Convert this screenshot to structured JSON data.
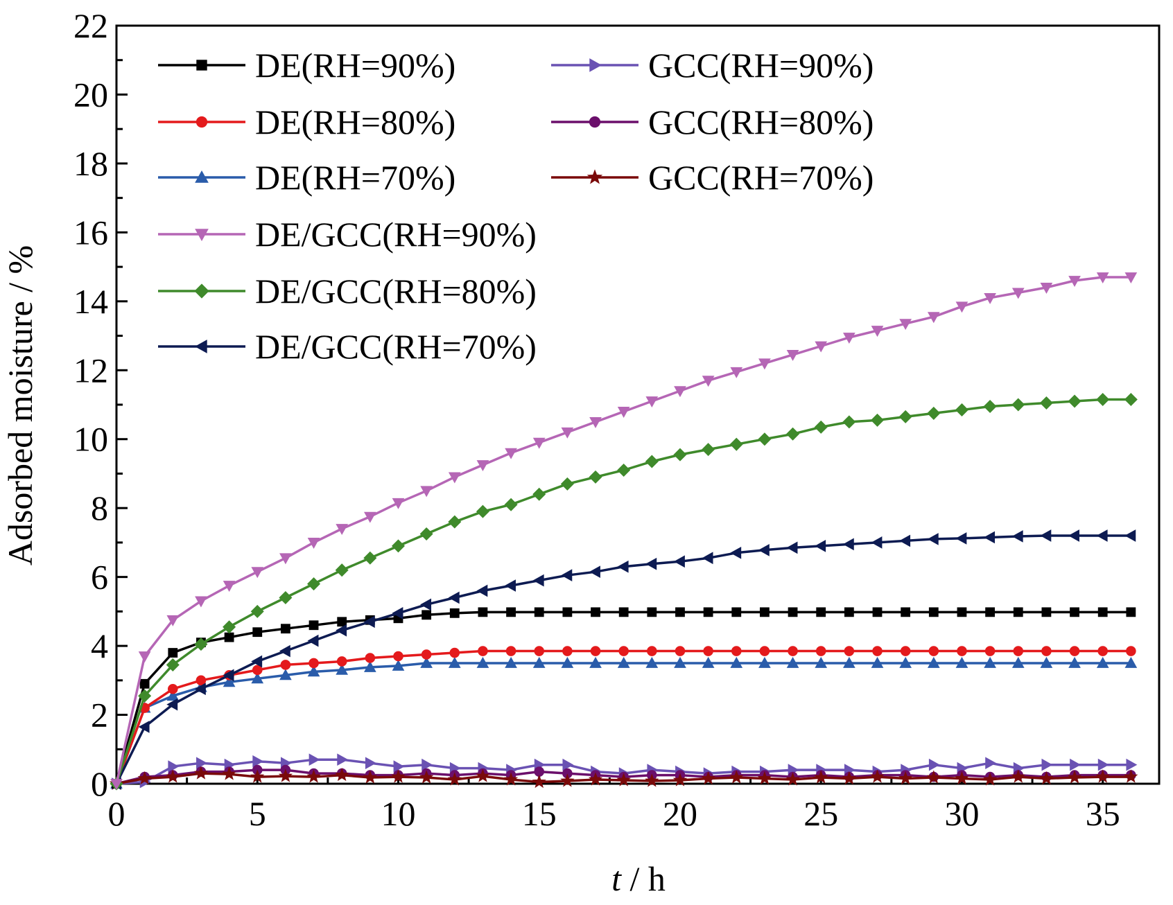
{
  "chart_data": {
    "type": "line",
    "title": "",
    "xlabel": {
      "var": "t",
      "unit": " / h"
    },
    "ylabel": "Adsorbed moisture / %",
    "xlim": [
      0,
      37
    ],
    "ylim": [
      0,
      22
    ],
    "xticks": [
      0,
      5,
      10,
      15,
      20,
      25,
      30,
      35
    ],
    "yticks": [
      0,
      2,
      4,
      6,
      8,
      10,
      12,
      14,
      16,
      18,
      20,
      22
    ],
    "grid": false,
    "legend_position": "top-left",
    "x": [
      0,
      1,
      2,
      3,
      4,
      5,
      6,
      7,
      8,
      9,
      10,
      11,
      12,
      13,
      14,
      15,
      16,
      17,
      18,
      19,
      20,
      21,
      22,
      23,
      24,
      25,
      26,
      27,
      28,
      29,
      30,
      31,
      32,
      33,
      34,
      35,
      36
    ],
    "series": [
      {
        "name": "DE(RH=90%)",
        "color": "#000000",
        "marker": "square",
        "values": [
          0,
          2.9,
          3.8,
          4.1,
          4.25,
          4.4,
          4.5,
          4.6,
          4.7,
          4.75,
          4.8,
          4.9,
          4.95,
          4.98,
          4.98,
          4.98,
          4.98,
          4.98,
          4.98,
          4.98,
          4.98,
          4.98,
          4.98,
          4.98,
          4.98,
          4.98,
          4.98,
          4.98,
          4.98,
          4.98,
          4.98,
          4.98,
          4.98,
          4.98,
          4.98,
          4.98,
          4.98
        ]
      },
      {
        "name": "DE(RH=80%)",
        "color": "#e41a1c",
        "marker": "circle",
        "values": [
          0,
          2.2,
          2.75,
          3.0,
          3.15,
          3.3,
          3.45,
          3.5,
          3.55,
          3.65,
          3.7,
          3.75,
          3.8,
          3.85,
          3.85,
          3.85,
          3.85,
          3.85,
          3.85,
          3.85,
          3.85,
          3.85,
          3.85,
          3.85,
          3.85,
          3.85,
          3.85,
          3.85,
          3.85,
          3.85,
          3.85,
          3.85,
          3.85,
          3.85,
          3.85,
          3.85,
          3.85
        ]
      },
      {
        "name": "DE(RH=70%)",
        "color": "#2a5caa",
        "marker": "triangle-up",
        "values": [
          0,
          2.2,
          2.55,
          2.8,
          2.95,
          3.05,
          3.15,
          3.25,
          3.3,
          3.38,
          3.42,
          3.5,
          3.5,
          3.5,
          3.5,
          3.5,
          3.5,
          3.5,
          3.5,
          3.5,
          3.5,
          3.5,
          3.5,
          3.5,
          3.5,
          3.5,
          3.5,
          3.5,
          3.5,
          3.5,
          3.5,
          3.5,
          3.5,
          3.5,
          3.5,
          3.5,
          3.5
        ]
      },
      {
        "name": "GCC(RH=90%)",
        "color": "#6a52b3",
        "marker": "triangle-right",
        "values": [
          0,
          0.05,
          0.5,
          0.6,
          0.55,
          0.65,
          0.6,
          0.7,
          0.7,
          0.6,
          0.5,
          0.55,
          0.45,
          0.45,
          0.4,
          0.55,
          0.55,
          0.35,
          0.3,
          0.4,
          0.35,
          0.3,
          0.35,
          0.35,
          0.4,
          0.4,
          0.4,
          0.35,
          0.4,
          0.55,
          0.45,
          0.6,
          0.45,
          0.55,
          0.55,
          0.55,
          0.55
        ]
      },
      {
        "name": "GCC(RH=80%)",
        "color": "#6b0f6b",
        "marker": "circle",
        "values": [
          0,
          0.2,
          0.25,
          0.35,
          0.35,
          0.4,
          0.4,
          0.3,
          0.3,
          0.25,
          0.25,
          0.3,
          0.25,
          0.3,
          0.25,
          0.35,
          0.3,
          0.25,
          0.2,
          0.25,
          0.25,
          0.2,
          0.25,
          0.25,
          0.2,
          0.25,
          0.2,
          0.25,
          0.25,
          0.2,
          0.25,
          0.2,
          0.25,
          0.2,
          0.25,
          0.25,
          0.25
        ]
      },
      {
        "name": "GCC(RH=70%)",
        "color": "#7a0a0a",
        "marker": "star",
        "values": [
          0,
          0.15,
          0.2,
          0.3,
          0.28,
          0.2,
          0.22,
          0.2,
          0.25,
          0.18,
          0.2,
          0.18,
          0.12,
          0.22,
          0.12,
          0.05,
          0.08,
          0.12,
          0.1,
          0.08,
          0.1,
          0.15,
          0.18,
          0.15,
          0.12,
          0.18,
          0.15,
          0.2,
          0.15,
          0.18,
          0.15,
          0.12,
          0.2,
          0.15,
          0.18,
          0.2,
          0.2
        ]
      },
      {
        "name": "DE/GCC(RH=90%)",
        "color": "#b566b5",
        "marker": "triangle-down",
        "values": [
          0,
          3.7,
          4.75,
          5.3,
          5.75,
          6.15,
          6.55,
          7.0,
          7.4,
          7.75,
          8.15,
          8.5,
          8.9,
          9.25,
          9.6,
          9.9,
          10.2,
          10.5,
          10.8,
          11.1,
          11.4,
          11.7,
          11.95,
          12.2,
          12.45,
          12.7,
          12.95,
          13.15,
          13.35,
          13.55,
          13.85,
          14.1,
          14.25,
          14.4,
          14.6,
          14.7,
          14.7
        ]
      },
      {
        "name": "DE/GCC(RH=80%)",
        "color": "#3f8a2b",
        "marker": "diamond",
        "values": [
          0,
          2.55,
          3.45,
          4.05,
          4.55,
          5.0,
          5.4,
          5.8,
          6.2,
          6.55,
          6.9,
          7.25,
          7.6,
          7.9,
          8.1,
          8.4,
          8.7,
          8.9,
          9.1,
          9.35,
          9.55,
          9.7,
          9.85,
          10.0,
          10.15,
          10.35,
          10.5,
          10.55,
          10.65,
          10.75,
          10.85,
          10.95,
          11.0,
          11.05,
          11.1,
          11.15,
          11.15
        ]
      },
      {
        "name": "DE/GCC(RH=70%)",
        "color": "#0d1b52",
        "marker": "triangle-left",
        "values": [
          0,
          1.65,
          2.3,
          2.75,
          3.15,
          3.55,
          3.85,
          4.15,
          4.45,
          4.7,
          4.95,
          5.2,
          5.4,
          5.6,
          5.75,
          5.9,
          6.05,
          6.15,
          6.3,
          6.38,
          6.45,
          6.55,
          6.7,
          6.78,
          6.85,
          6.9,
          6.95,
          7.0,
          7.05,
          7.1,
          7.12,
          7.15,
          7.18,
          7.2,
          7.2,
          7.2,
          7.2
        ]
      }
    ]
  }
}
